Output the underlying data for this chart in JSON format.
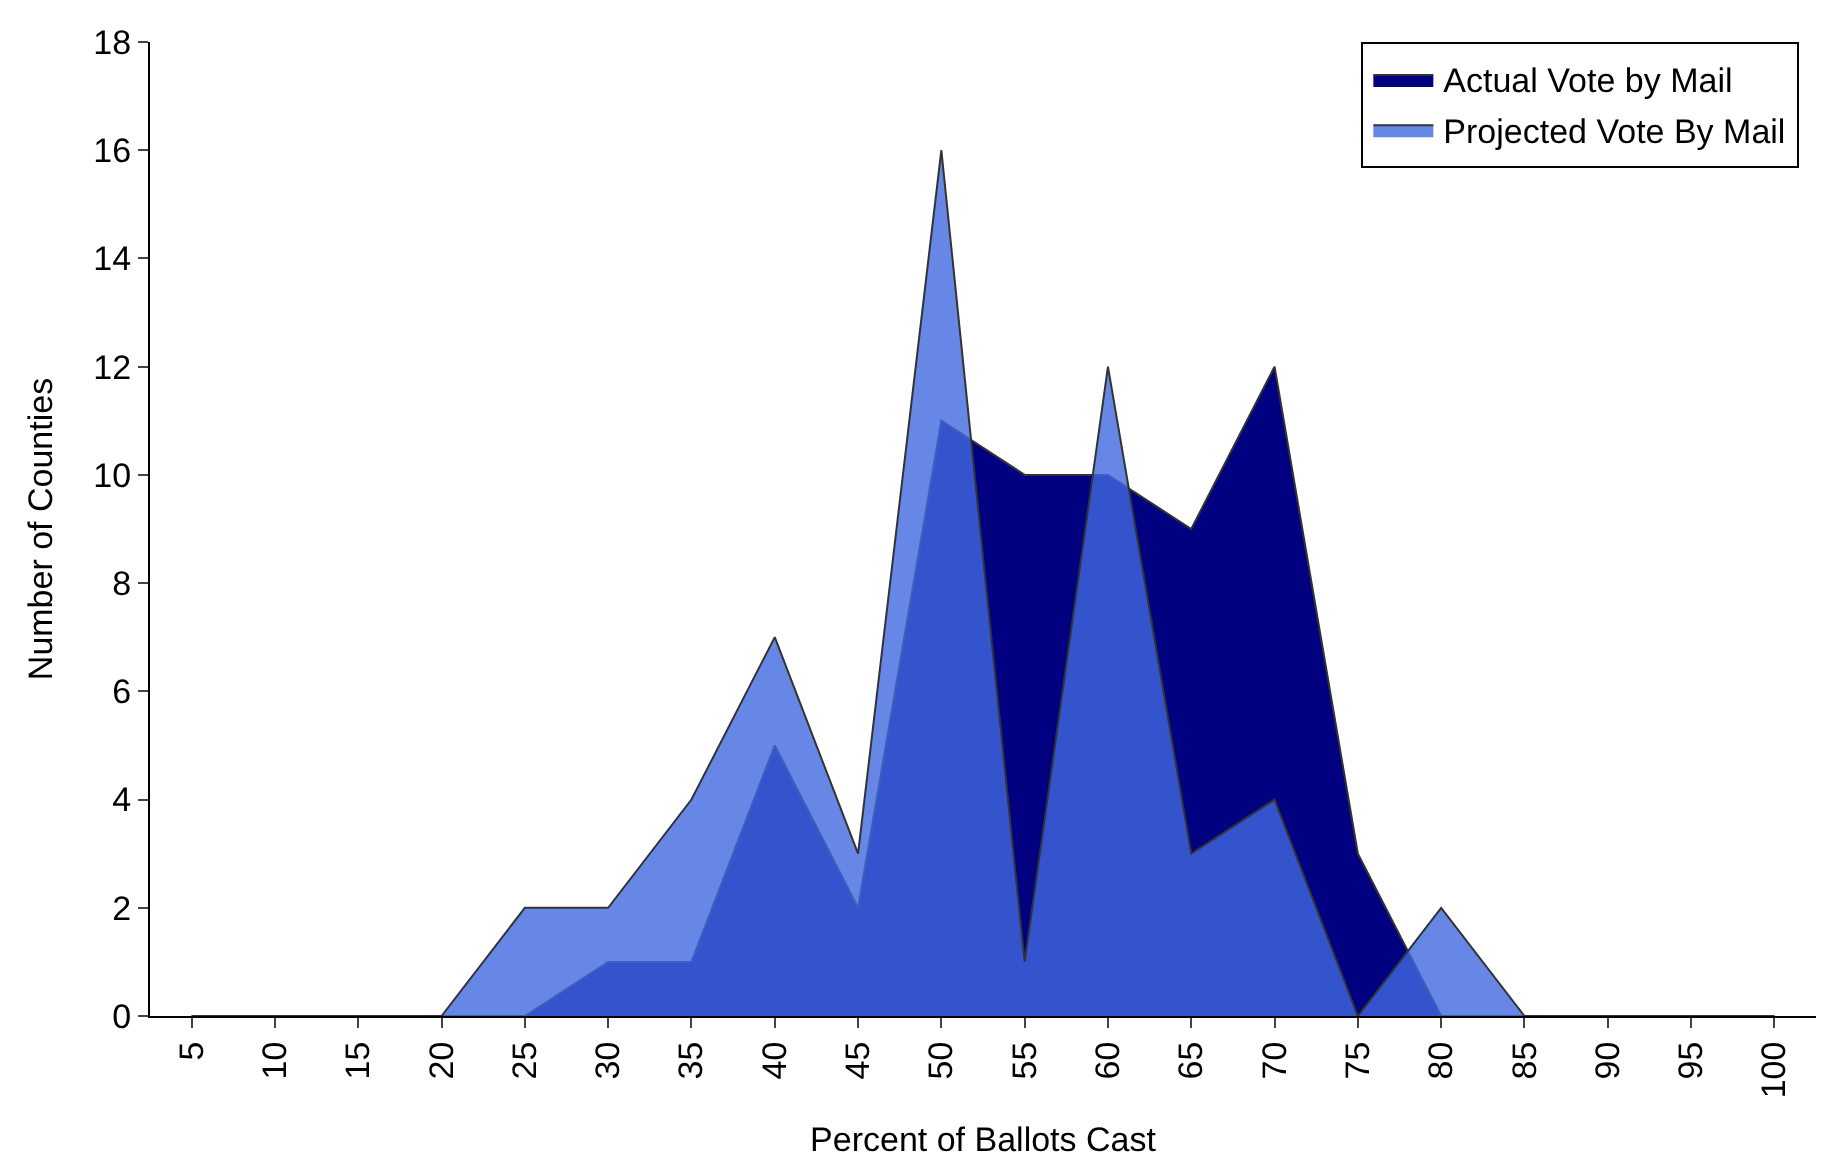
{
  "chart_data": {
    "type": "area",
    "xlabel": "Percent of Ballots Cast",
    "ylabel": "Number of Counties",
    "categories": [
      "5",
      "10",
      "15",
      "20",
      "25",
      "30",
      "35",
      "40",
      "45",
      "50",
      "55",
      "60",
      "65",
      "70",
      "75",
      "80",
      "85",
      "90",
      "95",
      "100"
    ],
    "series": [
      {
        "name": "Actual Vote by Mail",
        "color": "#000080",
        "values": [
          0,
          0,
          0,
          0,
          0,
          1,
          1,
          5,
          2,
          11,
          10,
          10,
          9,
          12,
          3,
          0,
          0,
          0,
          0,
          0
        ]
      },
      {
        "name": "Projected Vote By Mail",
        "color": "#4169e1",
        "values": [
          0,
          0,
          0,
          0,
          2,
          2,
          4,
          7,
          3,
          16,
          1,
          12,
          3,
          4,
          0,
          2,
          0,
          0,
          0,
          0
        ]
      }
    ],
    "ylim": [
      0,
      18
    ],
    "yticks": [
      0,
      2,
      4,
      6,
      8,
      10,
      12,
      14,
      16,
      18
    ],
    "legend": "top right"
  }
}
